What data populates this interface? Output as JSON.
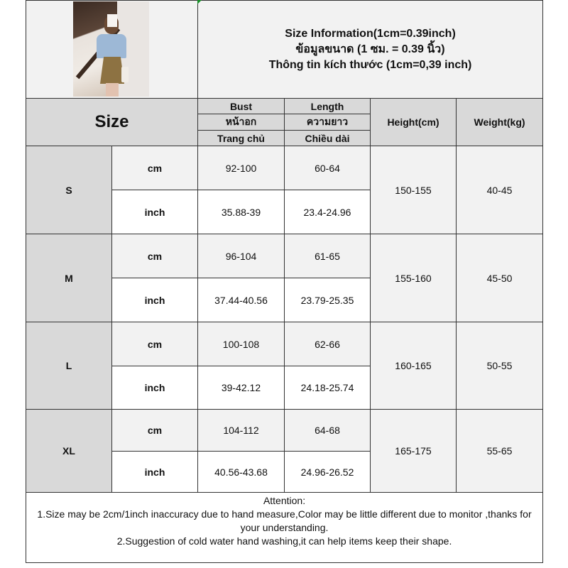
{
  "title": {
    "line1": "Size Information(1cm=0.39inch)",
    "line2": "ข้อมูลขนาด (1 ซม. = 0.39 นิ้ว)",
    "line3": "Thông tin kích thước (1cm=0,39 inch)"
  },
  "header": {
    "size": "Size",
    "bust": [
      "Bust",
      "หน้าอก",
      "Trang chủ"
    ],
    "length": [
      "Length",
      "ความยาว",
      "Chiều dài"
    ],
    "height": "Height(cm)",
    "weight": "Weight(kg)"
  },
  "units": {
    "cm": "cm",
    "inch": "inch"
  },
  "rows": [
    {
      "size": "S",
      "bust_cm": "92-100",
      "length_cm": "60-64",
      "bust_inch": "35.88-39",
      "length_inch": "23.4-24.96",
      "height": "150-155",
      "weight": "40-45"
    },
    {
      "size": "M",
      "bust_cm": "96-104",
      "length_cm": "61-65",
      "bust_inch": "37.44-40.56",
      "length_inch": "23.79-25.35",
      "height": "155-160",
      "weight": "45-50"
    },
    {
      "size": "L",
      "bust_cm": "100-108",
      "length_cm": "62-66",
      "bust_inch": "39-42.12",
      "length_inch": "24.18-25.74",
      "height": "160-165",
      "weight": "50-55"
    },
    {
      "size": "XL",
      "bust_cm": "104-112",
      "length_cm": "64-68",
      "bust_inch": "40.56-43.68",
      "length_inch": "24.96-26.52",
      "height": "165-175",
      "weight": "55-65"
    }
  ],
  "attention": {
    "heading": "Attention:",
    "note1": "1.Size may be 2cm/1inch inaccuracy due to hand measure,Color may be little different due to monitor ,thanks for your understanding.",
    "note2": "2.Suggestion of cold water hand washing,it can help items keep their shape."
  },
  "colors": {
    "header_gray": "#d9d9d9",
    "light_gray": "#f2f2f2",
    "white": "#ffffff",
    "border": "#333333"
  }
}
